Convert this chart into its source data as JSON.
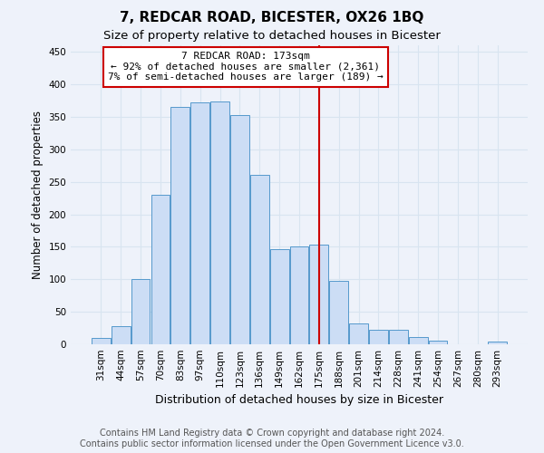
{
  "title": "7, REDCAR ROAD, BICESTER, OX26 1BQ",
  "subtitle": "Size of property relative to detached houses in Bicester",
  "xlabel": "Distribution of detached houses by size in Bicester",
  "ylabel": "Number of detached properties",
  "footer_line1": "Contains HM Land Registry data © Crown copyright and database right 2024.",
  "footer_line2": "Contains public sector information licensed under the Open Government Licence v3.0.",
  "categories": [
    "31sqm",
    "44sqm",
    "57sqm",
    "70sqm",
    "83sqm",
    "97sqm",
    "110sqm",
    "123sqm",
    "136sqm",
    "149sqm",
    "162sqm",
    "175sqm",
    "188sqm",
    "201sqm",
    "214sqm",
    "228sqm",
    "241sqm",
    "254sqm",
    "267sqm",
    "280sqm",
    "293sqm"
  ],
  "bar_values": [
    10,
    28,
    100,
    230,
    365,
    372,
    374,
    353,
    260,
    146,
    151,
    153,
    97,
    32,
    22,
    22,
    11,
    5,
    0,
    0,
    4
  ],
  "bar_color": "#ccddf5",
  "bar_edge_color": "#5599cc",
  "property_label": "7 REDCAR ROAD: 173sqm",
  "annotation_line1": "← 92% of detached houses are smaller (2,361)",
  "annotation_line2": "7% of semi-detached houses are larger (189) →",
  "vline_color": "#cc0000",
  "vline_index": 11,
  "annotation_box_edge_color": "#cc0000",
  "annotation_box_face_color": "#ffffff",
  "ylim": [
    0,
    460
  ],
  "yticks": [
    0,
    50,
    100,
    150,
    200,
    250,
    300,
    350,
    400,
    450
  ],
  "background_color": "#eef2fa",
  "grid_color": "#d8e4f0",
  "title_fontsize": 11,
  "subtitle_fontsize": 9.5,
  "xlabel_fontsize": 9,
  "ylabel_fontsize": 8.5,
  "tick_fontsize": 7.5,
  "annotation_fontsize": 8,
  "footer_fontsize": 7
}
